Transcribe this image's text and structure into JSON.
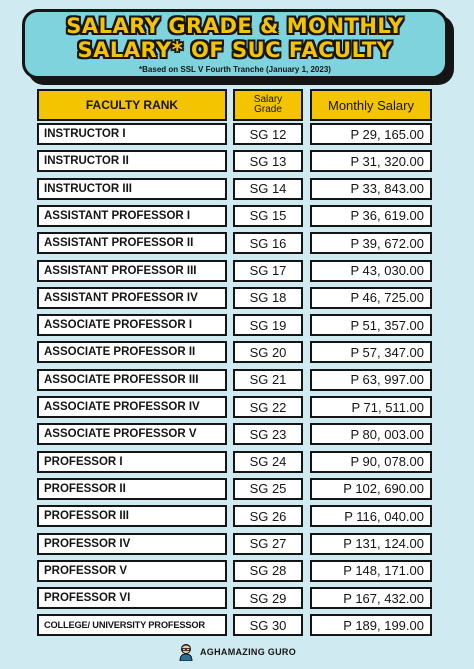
{
  "title": {
    "line1": "SALARY GRADE & MONTHLY",
    "line2": "SALARY* OF SUC FACULTY",
    "subtitle": "*Based on SSL V Fourth Tranche (January 1, 2023)"
  },
  "table": {
    "headers": {
      "rank": "FACULTY RANK",
      "sg_line1": "Salary",
      "sg_line2": "Grade",
      "salary": "Monthly Salary"
    },
    "rows": [
      {
        "rank": "INSTRUCTOR I",
        "sg": "SG 12",
        "salary": "P 29, 165.00"
      },
      {
        "rank": "INSTRUCTOR II",
        "sg": "SG 13",
        "salary": "P 31, 320.00"
      },
      {
        "rank": "INSTRUCTOR III",
        "sg": "SG 14",
        "salary": "P 33, 843.00"
      },
      {
        "rank": "ASSISTANT PROFESSOR I",
        "sg": "SG 15",
        "salary": "P 36, 619.00"
      },
      {
        "rank": "ASSISTANT PROFESSOR II",
        "sg": "SG 16",
        "salary": "P 39, 672.00"
      },
      {
        "rank": "ASSISTANT PROFESSOR III",
        "sg": "SG 17",
        "salary": "P 43, 030.00"
      },
      {
        "rank": "ASSISTANT PROFESSOR IV",
        "sg": "SG 18",
        "salary": "P 46, 725.00"
      },
      {
        "rank": "ASSOCIATE PROFESSOR I",
        "sg": "SG 19",
        "salary": "P 51, 357.00"
      },
      {
        "rank": "ASSOCIATE PROFESSOR II",
        "sg": "SG 20",
        "salary": "P 57, 347.00"
      },
      {
        "rank": "ASSOCIATE PROFESSOR III",
        "sg": "SG 21",
        "salary": "P 63, 997.00"
      },
      {
        "rank": "ASSOCIATE PROFESSOR IV",
        "sg": "SG 22",
        "salary": "P 71, 511.00"
      },
      {
        "rank": "ASSOCIATE PROFESSOR V",
        "sg": "SG 23",
        "salary": "P 80, 003.00"
      },
      {
        "rank": "PROFESSOR I",
        "sg": "SG 24",
        "salary": "P 90, 078.00"
      },
      {
        "rank": "PROFESSOR II",
        "sg": "SG 25",
        "salary": "P 102, 690.00"
      },
      {
        "rank": "PROFESSOR III",
        "sg": "SG 26",
        "salary": "P 116, 040.00"
      },
      {
        "rank": "PROFESSOR IV",
        "sg": "SG 27",
        "salary": "P 131, 124.00"
      },
      {
        "rank": "PROFESSOR V",
        "sg": "SG 28",
        "salary": "P 148, 171.00"
      },
      {
        "rank": "PROFESSOR VI",
        "sg": "SG 29",
        "salary": "P 167, 432.00"
      },
      {
        "rank": "COLLEGE/ UNIVERSITY PROFESSOR",
        "sg": "SG 30",
        "salary": "P 189, 199.00"
      }
    ]
  },
  "footer": {
    "brand": "AGHAMAZING GURO",
    "avatar_icon": "person-avatar-icon"
  },
  "colors": {
    "background": "#cfeaf0",
    "banner": "#7fd3dd",
    "accent_yellow": "#f5c400",
    "outline": "#151515"
  }
}
